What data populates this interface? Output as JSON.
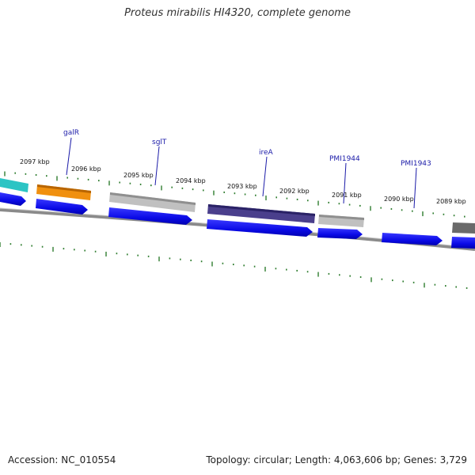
{
  "title": "Proteus mirabilis HI4320, complete genome",
  "accession": "Accession: NC_010554",
  "summary": "Topology: circular; Length: 4,063,606 bp; Genes: 3,729",
  "colors": {
    "backbone": "#8a8a8a",
    "ticks": "#2f7d2f",
    "cds": "#1010ee",
    "label": "#1a1aa8"
  },
  "kbp_labels": [
    "2097 kbp",
    "2096 kbp",
    "2095 kbp",
    "2094 kbp",
    "2093 kbp",
    "2092 kbp",
    "2091 kbp",
    "2090 kbp",
    "2089 kbp"
  ],
  "genes": [
    {
      "name": "galR",
      "color": "#f0900f"
    },
    {
      "name": "sglT",
      "color": "#bdbdbd"
    },
    {
      "name": "ireA",
      "color": "#4a3f8c"
    },
    {
      "name": "PMI1944",
      "color": "#bdbdbd"
    },
    {
      "name": "PMI1943",
      "color": ""
    }
  ],
  "extra_features": [
    {
      "color": "#2cc4c4"
    },
    {
      "color": "#6a6a6a"
    }
  ]
}
